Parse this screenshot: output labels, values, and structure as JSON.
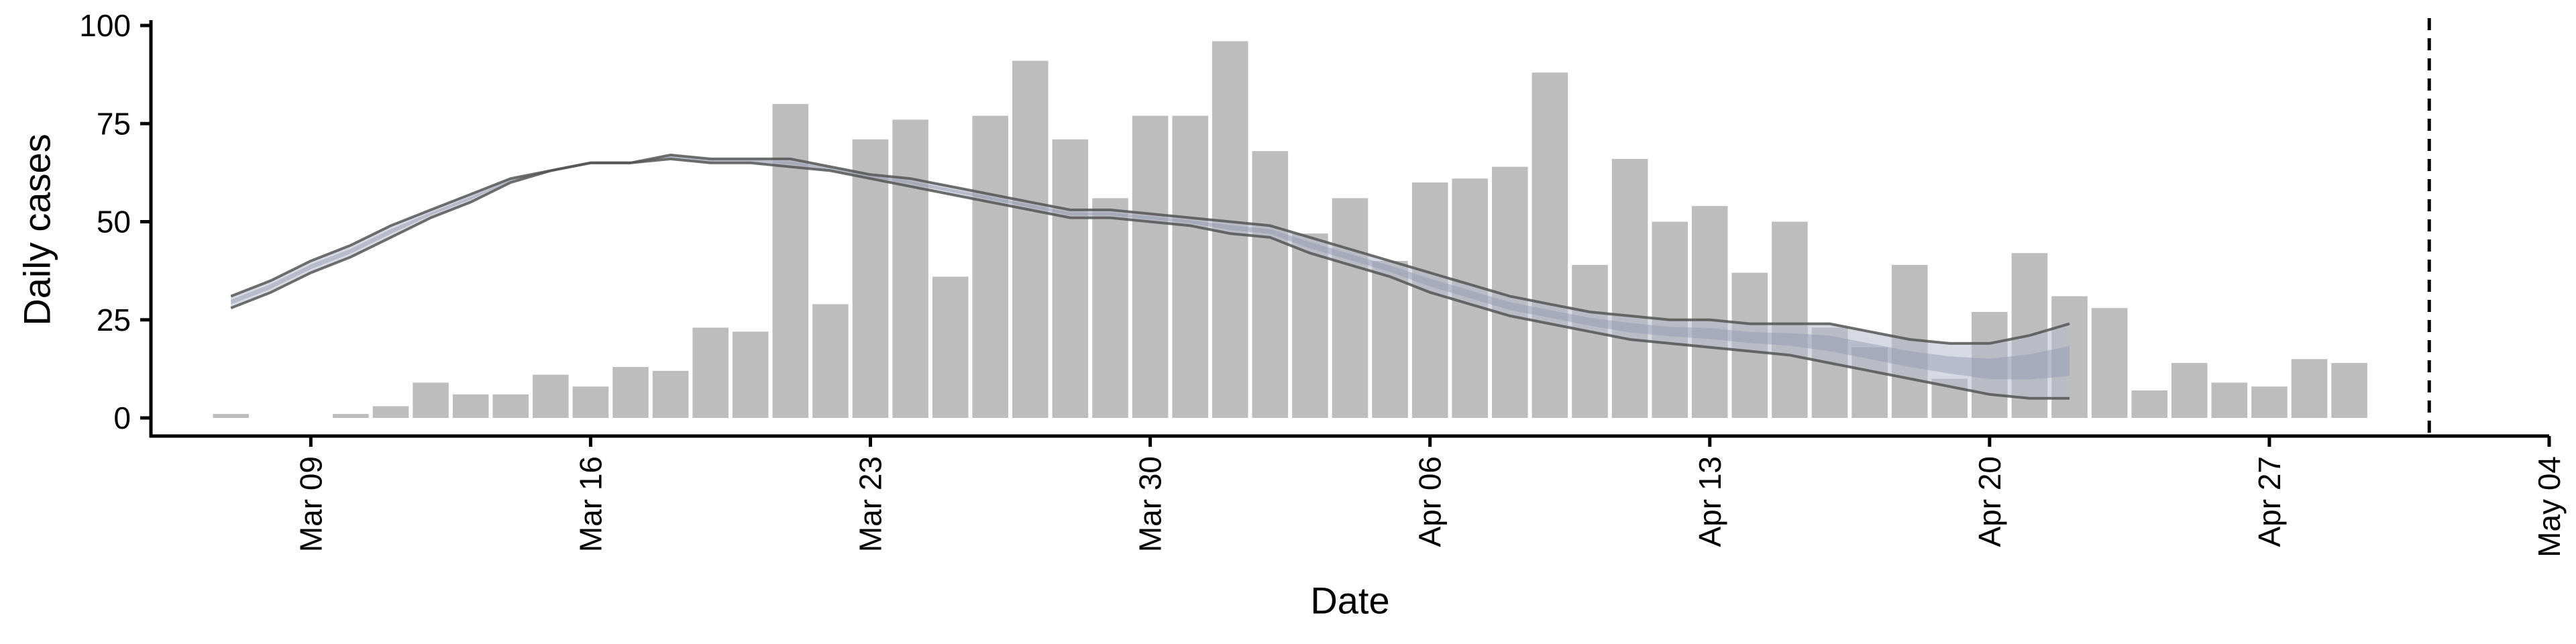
{
  "chart_data": {
    "type": "bar",
    "xlabel": "Date",
    "ylabel": "Daily cases",
    "ylim": [
      0,
      100
    ],
    "xlim": [
      "2020-03-05",
      "2020-05-04"
    ],
    "y_ticks": [
      0,
      25,
      50,
      75,
      100
    ],
    "y_tick_labels": [
      "0",
      "25",
      "50",
      "75",
      "100"
    ],
    "x_ticks": [
      "2020-03-09",
      "2020-03-16",
      "2020-03-23",
      "2020-03-30",
      "2020-04-06",
      "2020-04-13",
      "2020-04-20",
      "2020-04-27",
      "2020-05-04"
    ],
    "x_tick_labels": [
      "Mar 09",
      "Mar 16",
      "Mar 23",
      "Mar 30",
      "Apr 06",
      "Apr 13",
      "Apr 20",
      "Apr 27",
      "May 04"
    ],
    "grid": false,
    "vline": {
      "date": "2020-05-01",
      "style": "dashed",
      "color": "#000000"
    },
    "colors": {
      "bars": "#bdbdbd",
      "band_outer": "#b7bccc",
      "band_inner": "#8f97ae",
      "lines": "#555555"
    },
    "bars": {
      "dates": [
        "2020-03-07",
        "2020-03-08",
        "2020-03-09",
        "2020-03-10",
        "2020-03-11",
        "2020-03-12",
        "2020-03-13",
        "2020-03-14",
        "2020-03-15",
        "2020-03-16",
        "2020-03-17",
        "2020-03-18",
        "2020-03-19",
        "2020-03-20",
        "2020-03-21",
        "2020-03-22",
        "2020-03-23",
        "2020-03-24",
        "2020-03-25",
        "2020-03-26",
        "2020-03-27",
        "2020-03-28",
        "2020-03-29",
        "2020-03-30",
        "2020-03-31",
        "2020-04-01",
        "2020-04-02",
        "2020-04-03",
        "2020-04-04",
        "2020-04-05",
        "2020-04-06",
        "2020-04-07",
        "2020-04-08",
        "2020-04-09",
        "2020-04-10",
        "2020-04-11",
        "2020-04-12",
        "2020-04-13",
        "2020-04-14",
        "2020-04-15",
        "2020-04-16",
        "2020-04-17",
        "2020-04-18",
        "2020-04-19",
        "2020-04-20",
        "2020-04-21",
        "2020-04-22",
        "2020-04-23",
        "2020-04-24",
        "2020-04-25",
        "2020-04-26",
        "2020-04-27",
        "2020-04-28",
        "2020-04-29",
        "2020-04-30",
        "2020-05-01"
      ],
      "values": [
        1,
        0,
        0,
        1,
        3,
        9,
        6,
        6,
        11,
        8,
        13,
        12,
        23,
        22,
        80,
        29,
        71,
        76,
        36,
        77,
        91,
        71,
        56,
        77,
        77,
        96,
        68,
        47,
        56,
        40,
        60,
        61,
        64,
        88,
        39,
        66,
        50,
        54,
        37,
        50,
        23,
        18,
        39,
        10,
        27,
        42,
        31,
        28,
        7,
        14,
        9,
        8,
        15,
        14,
        0,
        0
      ]
    },
    "series": [
      {
        "dates": [
          "2020-03-07",
          "2020-03-08",
          "2020-03-09",
          "2020-03-10",
          "2020-03-11",
          "2020-03-12",
          "2020-03-13",
          "2020-03-14",
          "2020-03-15",
          "2020-03-16",
          "2020-03-17",
          "2020-03-18",
          "2020-03-19",
          "2020-03-20",
          "2020-03-21",
          "2020-03-22",
          "2020-03-23",
          "2020-03-24",
          "2020-03-25",
          "2020-03-26",
          "2020-03-27",
          "2020-03-28",
          "2020-03-29",
          "2020-03-30",
          "2020-03-31",
          "2020-04-01",
          "2020-04-02",
          "2020-04-03",
          "2020-04-04",
          "2020-04-05",
          "2020-04-06",
          "2020-04-07",
          "2020-04-08",
          "2020-04-09",
          "2020-04-10",
          "2020-04-11",
          "2020-04-12",
          "2020-04-13",
          "2020-04-14",
          "2020-04-15",
          "2020-04-16",
          "2020-04-17",
          "2020-04-18",
          "2020-04-19",
          "2020-04-20",
          "2020-04-21",
          "2020-04-22"
        ],
        "upper": [
          31,
          35,
          40,
          44,
          49,
          53,
          57,
          61,
          63,
          65,
          65,
          67,
          66,
          66,
          66,
          64,
          62,
          61,
          59,
          57,
          55,
          53,
          53,
          52,
          51,
          50,
          49,
          46,
          43,
          40,
          37,
          34,
          31,
          29,
          27,
          26,
          25,
          25,
          24,
          24,
          24,
          22,
          20,
          19,
          19,
          21,
          24
        ],
        "lower": [
          28,
          32,
          37,
          41,
          46,
          51,
          55,
          60,
          63,
          65,
          65,
          66,
          65,
          65,
          64,
          63,
          61,
          59,
          57,
          55,
          53,
          51,
          51,
          50,
          49,
          47,
          46,
          42,
          39,
          36,
          32,
          29,
          26,
          24,
          22,
          20,
          19,
          18,
          17,
          16,
          14,
          12,
          10,
          8,
          6,
          5,
          5
        ]
      }
    ]
  }
}
